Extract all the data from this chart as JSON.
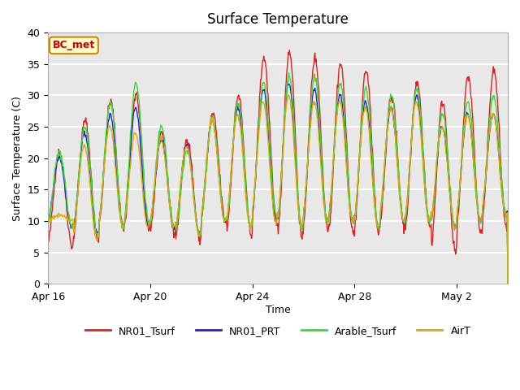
{
  "title": "Surface Temperature",
  "xlabel": "Time",
  "ylabel": "Surface Temperature (C)",
  "ylim": [
    0,
    40
  ],
  "xlim_days": [
    0,
    18
  ],
  "background_color": "#e8e8e8",
  "plot_bg_color": "#e8e8e8",
  "grid_color": "white",
  "annotation_text": "BC_met",
  "annotation_bg": "#ffffcc",
  "annotation_border": "#cc8800",
  "annotation_text_color": "#cc0000",
  "series_colors": {
    "NR01_Tsurf": "#dd2222",
    "NR01_PRT": "#2222dd",
    "Arable_Tsurf": "#33dd33",
    "AirT": "#ddaa00"
  },
  "legend_entries": [
    "NR01_Tsurf",
    "NR01_PRT",
    "Arable_Tsurf",
    "AirT"
  ],
  "xtick_labels": [
    "Apr 16",
    "Apr 20",
    "Apr 24",
    "Apr 28",
    "May 2"
  ],
  "xtick_positions": [
    0,
    4,
    8,
    12,
    16
  ],
  "ytick_positions": [
    0,
    5,
    10,
    15,
    20,
    25,
    30,
    35,
    40
  ],
  "n_days": 18,
  "pts_per_day": 48
}
